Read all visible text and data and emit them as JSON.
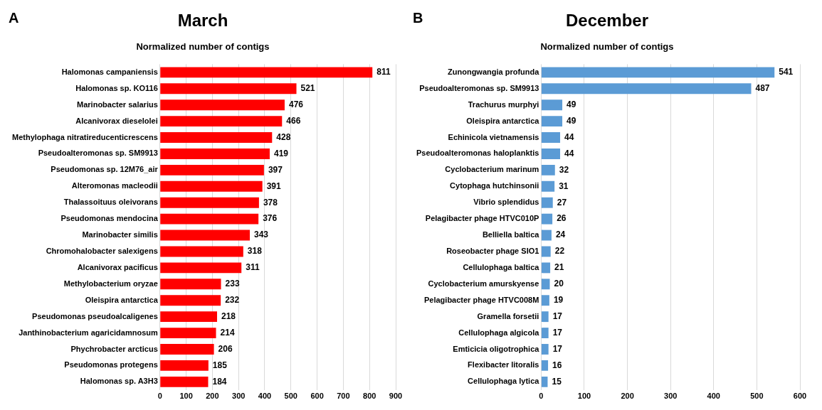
{
  "chart_data": [
    {
      "type": "bar",
      "orientation": "horizontal",
      "title": "March",
      "subtitle": "Normalized number of contigs",
      "annotations": [
        "A"
      ],
      "categories": [
        "Halomonas campaniensis",
        "Halomonas sp. KO116",
        "Marinobacter salarius",
        "Alcanivorax dieselolei",
        "Methylophaga nitratireducenticrescens",
        "Pseudoalteromonas sp. SM9913",
        "Pseudomonas sp. 12M76_air",
        "Alteromonas macleodii",
        "Thalassoituus oleivorans",
        "Pseudomonas mendocina",
        "Marinobacter similis",
        "Chromohalobacter salexigens",
        "Alcanivorax pacificus",
        "Methylobacterium oryzae",
        "Oleispira antarctica",
        "Pseudomonas pseudoalcaligenes",
        "Janthinobacterium agaricidamnosum",
        "Phychrobacter arcticus",
        "Pseudomonas protegens",
        "Halomonas sp. A3H3"
      ],
      "values": [
        811,
        521,
        476,
        466,
        428,
        419,
        397,
        391,
        378,
        376,
        343,
        318,
        311,
        233,
        232,
        218,
        214,
        206,
        185,
        184
      ],
      "color": "#ff0000",
      "xlim": [
        0,
        900
      ],
      "xticks": [
        0,
        100,
        200,
        300,
        400,
        500,
        600,
        700,
        800,
        900
      ],
      "grid": "x",
      "data_labels": true
    },
    {
      "type": "bar",
      "orientation": "horizontal",
      "title": "December",
      "subtitle": "Normalized number of contigs",
      "annotations": [
        "B"
      ],
      "categories": [
        "Zunongwangia profunda",
        "Pseudoalteromonas sp. SM9913",
        "Trachurus murphyi",
        "Oleispira antarctica",
        "Echinicola vietnamensis",
        "Pseudoalteromonas haloplanktis",
        "Cyclobacterium marinum",
        "Cytophaga hutchinsonii",
        "Vibrio splendidus",
        "Pelagibacter phage HTVC010P",
        "Belliella baltica",
        "Roseobacter phage SIO1",
        "Cellulophaga baltica",
        "Cyclobacterium amurskyense",
        "Pelagibacter phage HTVC008M",
        "Gramella forsetii",
        "Cellulophaga algicola",
        "Emticicia oligotrophica",
        "Flexibacter litoralis",
        "Cellulophaga lytica"
      ],
      "values": [
        541,
        487,
        49,
        49,
        44,
        44,
        32,
        31,
        27,
        26,
        24,
        22,
        21,
        20,
        19,
        17,
        17,
        17,
        16,
        15
      ],
      "color": "#5b9bd5",
      "xlim": [
        0,
        600
      ],
      "xticks": [
        0,
        100,
        200,
        300,
        400,
        500,
        600
      ],
      "grid": "x",
      "data_labels": true
    }
  ]
}
